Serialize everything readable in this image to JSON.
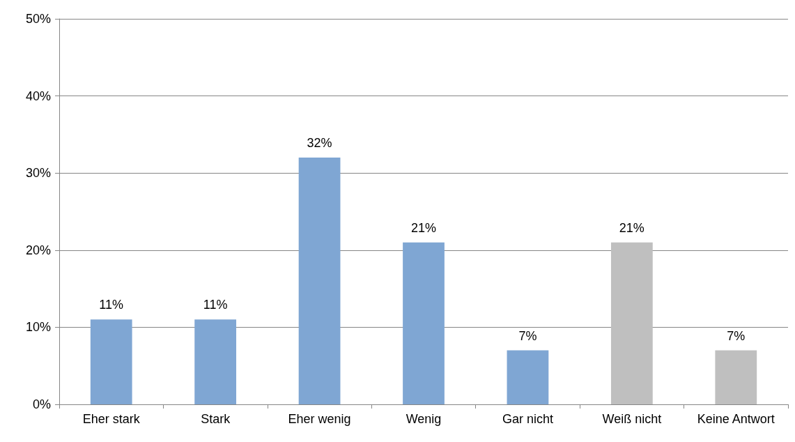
{
  "chart_data": {
    "type": "bar",
    "categories": [
      "Eher stark",
      "Stark",
      "Eher wenig",
      "Wenig",
      "Gar nicht",
      "Weiß nicht",
      "Keine Antwort"
    ],
    "values": [
      11,
      11,
      32,
      21,
      7,
      21,
      7
    ],
    "colors": [
      "#7fa6d3",
      "#7fa6d3",
      "#7fa6d3",
      "#7fa6d3",
      "#7fa6d3",
      "#bfbfbf",
      "#bfbfbf"
    ],
    "value_labels": [
      "11%",
      "11%",
      "32%",
      "21%",
      "7%",
      "21%",
      "7%"
    ],
    "ylim": [
      0,
      50
    ],
    "yticks": [
      {
        "value": 0,
        "label": "0%"
      },
      {
        "value": 10,
        "label": "10%"
      },
      {
        "value": 20,
        "label": "20%"
      },
      {
        "value": 30,
        "label": "30%"
      },
      {
        "value": 40,
        "label": "40%"
      },
      {
        "value": 50,
        "label": "50%"
      }
    ],
    "grid": "y"
  }
}
